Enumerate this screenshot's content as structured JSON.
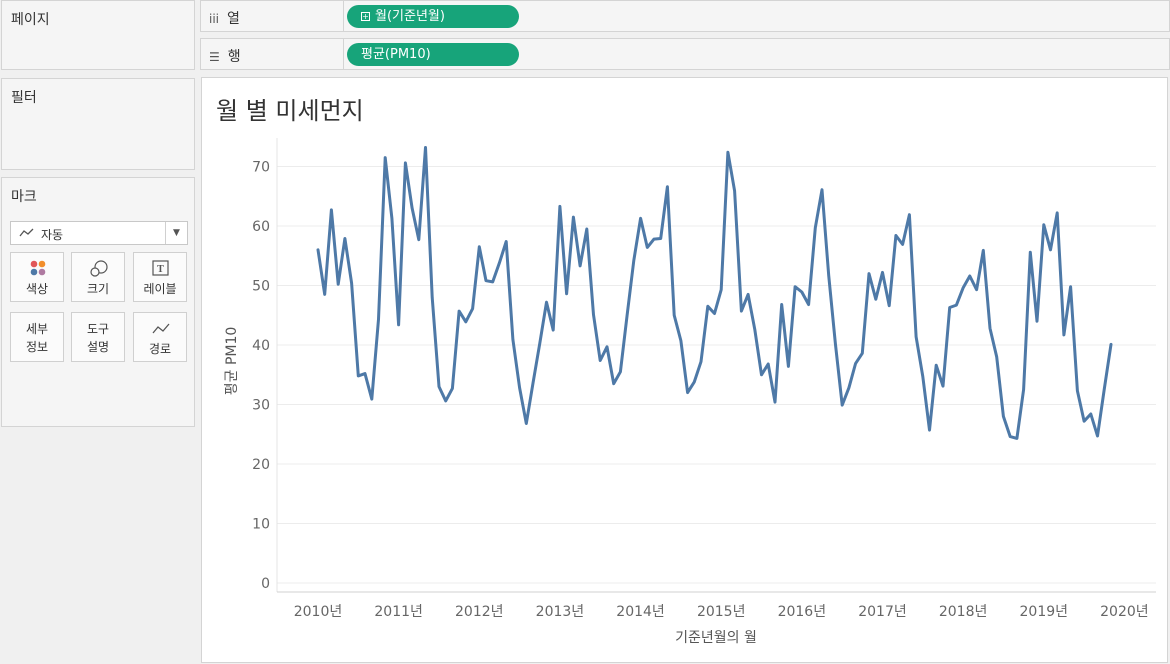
{
  "panels": {
    "pages_title": "페이지",
    "filters_title": "필터",
    "marks_title": "마크"
  },
  "marks": {
    "type_label": "자동",
    "buttons": {
      "color": "색상",
      "size": "크기",
      "label": "레이블",
      "detail": "세부 정보",
      "detail_line1": "세부",
      "detail_line2": "정보",
      "tooltip_line1": "도구",
      "tooltip_line2": "설명",
      "path": "경로"
    }
  },
  "shelves": {
    "columns": {
      "label": "열",
      "icon": "iii",
      "pill": "월(기준년월)"
    },
    "rows": {
      "label": "행",
      "icon": "☰",
      "pill": "평균(PM10)"
    }
  },
  "colors": {
    "pill": "#17a47a",
    "line": "#4e79a7"
  },
  "chart_data": {
    "type": "line",
    "title": "월 별 미세먼지",
    "xlabel": "기준년월의 월",
    "ylabel": "평균 PM10",
    "ylim": [
      0,
      75
    ],
    "yticks": [
      0,
      10,
      20,
      30,
      40,
      50,
      60,
      70
    ],
    "xticks": [
      "2010년",
      "2011년",
      "2012년",
      "2013년",
      "2014년",
      "2015년",
      "2016년",
      "2017년",
      "2018년",
      "2019년",
      "2020년"
    ],
    "grid": "horizontal",
    "series": [
      {
        "start": "2010-01",
        "values": [
          56,
          48.5,
          62.7,
          50.2,
          57.9,
          50.4,
          34.8,
          35.2,
          30.9,
          44.3,
          71.5,
          61.3,
          43.4,
          70.6,
          63,
          57.7,
          73.2,
          48,
          33,
          30.6,
          32.7,
          45.7,
          43.9,
          46.1,
          56.5,
          50.8,
          50.6,
          53.8,
          57.4,
          40.9,
          32.8,
          26.8,
          33.6,
          40.3,
          47.2,
          42.5,
          63.3,
          48.6,
          61.5,
          53.3,
          59.5,
          45.1,
          37.4,
          39.7,
          33.5,
          35.5,
          45,
          54.2,
          61.3,
          56.4,
          57.8,
          57.9,
          66.6,
          45,
          40.7,
          32,
          33.8,
          37.2,
          46.5,
          45.3,
          49.3,
          72.4,
          65.9,
          45.7,
          48.5,
          42.6,
          35,
          36.8,
          30.4,
          46.8,
          36.4,
          49.8,
          48.9,
          46.8,
          59.7,
          66.1,
          51.7,
          40.2,
          29.9,
          32.8,
          36.9,
          38.6,
          52,
          47.7,
          52.2,
          46.6,
          58.4,
          56.9,
          61.9,
          41.4,
          34.7,
          25.7,
          36.6,
          33.1,
          46.3,
          46.7,
          49.6,
          51.6,
          49.3,
          55.9,
          42.8,
          38,
          28,
          24.6,
          24.3,
          32.5,
          55.6,
          44,
          60.2,
          56,
          62.2,
          41.7,
          49.8,
          32.3,
          27.2,
          28.4,
          24.7,
          32.5,
          40.1
        ]
      }
    ]
  }
}
